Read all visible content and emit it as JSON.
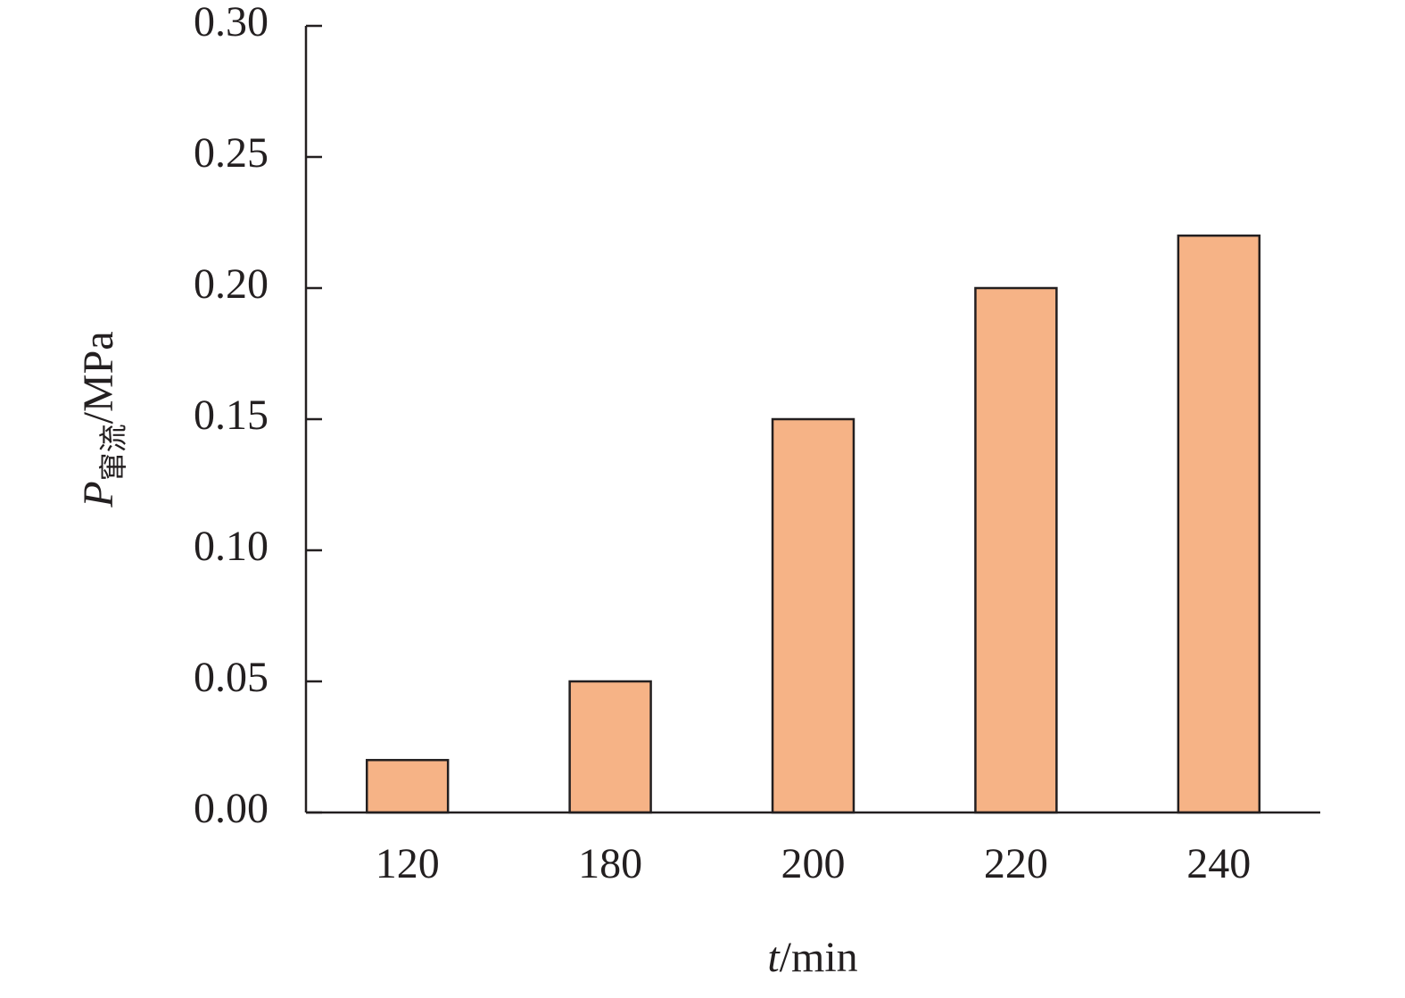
{
  "chart_data": {
    "type": "bar",
    "y_label": {
      "symbol": "P",
      "subscript": "窜流",
      "unit": "/MPa"
    },
    "x_label": {
      "symbol": "t",
      "unit": "/min"
    },
    "categories": [
      "120",
      "180",
      "200",
      "220",
      "240"
    ],
    "values": [
      0.02,
      0.05,
      0.15,
      0.2,
      0.22
    ],
    "color": "#f6b386",
    "ylim": [
      0,
      0.3
    ],
    "yticks": [
      {
        "value": 0,
        "label": "0.00"
      },
      0.05,
      {
        "value": 0.1,
        "label": "0.10"
      },
      0.15,
      {
        "value": 0.2,
        "label": "0.20"
      },
      0.25,
      {
        "value": 0.3,
        "label": "0.30"
      }
    ]
  }
}
